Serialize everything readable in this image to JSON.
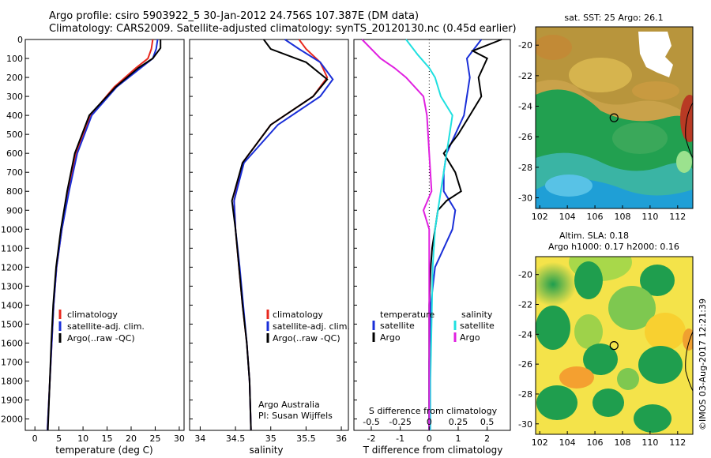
{
  "header": {
    "line1": "Argo profile: csiro 5903922_5 30-Jan-2012 24.756S 107.387E (DM data)",
    "line2": "Climatology: CARS2009. Satellite-adjusted climatology: synTS_20120130.nc (0.45d earlier)"
  },
  "panel1": {
    "xlabel": "temperature (deg C)",
    "xticks": [
      "0",
      "5",
      "10",
      "15",
      "20",
      "25",
      "30"
    ],
    "yticks": [
      "0",
      "100",
      "200",
      "300",
      "400",
      "500",
      "600",
      "700",
      "800",
      "900",
      "1000",
      "1100",
      "1200",
      "1300",
      "1400",
      "1500",
      "1600",
      "1700",
      "1800",
      "1900",
      "2000"
    ],
    "legend": [
      "climatology",
      "satellite-adj. clim.",
      "Argo(..raw -QC)"
    ]
  },
  "panel2": {
    "xlabel": "salinity",
    "xticks": [
      "34",
      "34.5",
      "35",
      "35.5",
      "36"
    ],
    "legend": [
      "climatology",
      "satellite-adj. clim.",
      "Argo(..raw -QC)"
    ],
    "note1": "Argo Australia",
    "note2": "PI: Susan Wijffels"
  },
  "panel3": {
    "top_label": "S difference from climatology",
    "top_ticks": [
      "-0.5",
      "-0.25",
      "0",
      "0.25",
      "0.5"
    ],
    "xlabel": "T difference from climatology",
    "xticks": [
      "-2",
      "-1",
      "0",
      "1",
      "2"
    ],
    "legend_t_head": "temperature",
    "legend_s_head": "salinity",
    "legend_t": [
      "satellite",
      "Argo"
    ],
    "legend_s": [
      "satellite",
      "Argo"
    ]
  },
  "map1": {
    "title": "sat. SST: 25 Argo: 26.1",
    "yticks": [
      "-20",
      "-22",
      "-24",
      "-26",
      "-28",
      "-30"
    ],
    "xticks": [
      "102",
      "104",
      "106",
      "108",
      "110",
      "112"
    ]
  },
  "map2": {
    "title1": "Altim. SLA: 0.18",
    "title2": "Argo h1000: 0.17 h2000: 0.16",
    "yticks": [
      "-20",
      "-22",
      "-24",
      "-26",
      "-28",
      "-30"
    ],
    "xticks": [
      "102",
      "104",
      "106",
      "108",
      "110",
      "112"
    ]
  },
  "stamp": "©IMOS 03-Aug-2017 12:21:39",
  "colors": {
    "climatology": "#e8281e",
    "satellite": "#1a2fd8",
    "argo": "#000000",
    "sal_sat": "#20e0e0",
    "sal_argo": "#e020e0"
  },
  "chart_data": [
    {
      "type": "line",
      "xlabel": "temperature (deg C)",
      "ylabel": "",
      "xlim": [
        -2,
        31
      ],
      "ylim": [
        2060,
        0
      ],
      "series": [
        {
          "name": "climatology",
          "x": [
            24.5,
            24.2,
            23.5,
            21.0,
            16.5,
            11.5,
            8.6,
            7.0,
            5.6,
            4.5,
            3.9,
            3.5,
            2.6
          ],
          "y": [
            0,
            50,
            100,
            150,
            250,
            400,
            600,
            800,
            1000,
            1200,
            1400,
            1600,
            2060
          ]
        },
        {
          "name": "satellite-adj. clim.",
          "x": [
            25.5,
            25.2,
            24.5,
            22.0,
            17.0,
            11.8,
            8.8,
            7.1,
            5.6,
            4.5,
            3.9,
            3.5,
            2.6
          ],
          "y": [
            0,
            50,
            100,
            150,
            250,
            400,
            600,
            800,
            1000,
            1200,
            1400,
            1600,
            2060
          ]
        },
        {
          "name": "Argo(..raw -QC)",
          "x": [
            26.1,
            26.1,
            24.5,
            21.5,
            16.8,
            11.3,
            8.3,
            6.7,
            5.4,
            4.4,
            3.8,
            3.4,
            2.7
          ],
          "y": [
            0,
            45,
            100,
            150,
            250,
            400,
            600,
            800,
            1000,
            1200,
            1400,
            1600,
            2060
          ]
        }
      ]
    },
    {
      "type": "line",
      "xlabel": "salinity",
      "ylabel": "",
      "xlim": [
        33.85,
        36.1
      ],
      "ylim": [
        2060,
        0
      ],
      "series": [
        {
          "name": "climatology",
          "x": [
            35.4,
            35.5,
            35.7,
            35.8,
            35.6,
            35.0,
            34.6,
            34.48,
            34.5,
            34.55,
            34.6,
            34.66,
            34.7,
            34.72
          ],
          "y": [
            0,
            50,
            120,
            200,
            300,
            450,
            650,
            850,
            1000,
            1200,
            1400,
            1600,
            1800,
            2060
          ]
        },
        {
          "name": "satellite-adj. clim.",
          "x": [
            35.2,
            35.4,
            35.7,
            35.88,
            35.7,
            35.1,
            34.62,
            34.48,
            34.5,
            34.56,
            34.61,
            34.66,
            34.7,
            34.72
          ],
          "y": [
            0,
            50,
            120,
            210,
            300,
            450,
            650,
            850,
            1000,
            1200,
            1400,
            1600,
            1800,
            2060
          ]
        },
        {
          "name": "Argo(..raw -QC)",
          "x": [
            34.9,
            35.0,
            35.5,
            35.8,
            35.6,
            35.0,
            34.6,
            34.45,
            34.5,
            34.55,
            34.6,
            34.66,
            34.7,
            34.72
          ],
          "y": [
            0,
            50,
            120,
            210,
            300,
            450,
            650,
            850,
            1000,
            1200,
            1400,
            1600,
            1800,
            2060
          ]
        }
      ]
    },
    {
      "type": "line",
      "xlabel": "T difference from climatology",
      "top_label": "S difference from climatology",
      "xlim": [
        -2.6,
        2.8
      ],
      "top_xlim": [
        -0.65,
        0.7
      ],
      "ylim": [
        2060,
        0
      ],
      "series": [
        {
          "name": "satellite",
          "quantity": "temperature",
          "x": [
            1.8,
            1.5,
            1.3,
            1.4,
            1.3,
            1.2,
            0.9,
            0.6,
            0.5,
            0.5,
            0.7,
            0.9,
            0.8,
            0.5,
            0.2,
            0.05,
            0,
            0
          ],
          "y": [
            0,
            60,
            100,
            200,
            300,
            400,
            500,
            600,
            700,
            800,
            850,
            900,
            1000,
            1100,
            1200,
            1400,
            1700,
            2060
          ]
        },
        {
          "name": "Argo",
          "quantity": "temperature",
          "x": [
            2.5,
            1.5,
            2.0,
            1.7,
            1.8,
            1.4,
            1.0,
            0.5,
            0.9,
            1.1,
            0.6,
            0.3,
            0.2,
            0.1,
            0.05,
            0,
            0,
            0
          ],
          "y": [
            0,
            60,
            100,
            200,
            300,
            400,
            500,
            600,
            700,
            800,
            850,
            900,
            1000,
            1100,
            1200,
            1400,
            1700,
            2060
          ]
        },
        {
          "name": "satellite",
          "quantity": "salinity",
          "x": [
            -0.2,
            -0.1,
            0.0,
            0.05,
            0.1,
            0.2,
            0.15,
            0.1,
            0.05,
            0.03,
            0.02,
            0.01,
            0.01
          ],
          "y": [
            0,
            80,
            150,
            200,
            300,
            400,
            600,
            800,
            1000,
            1200,
            1500,
            1800,
            2060
          ]
        },
        {
          "name": "Argo",
          "quantity": "salinity",
          "x": [
            -0.58,
            -0.42,
            -0.3,
            -0.2,
            -0.05,
            -0.02,
            0.0,
            0.02,
            -0.05,
            0.0,
            0.0,
            0.0,
            0.0
          ],
          "y": [
            0,
            100,
            150,
            200,
            300,
            400,
            600,
            800,
            900,
            1000,
            1200,
            1500,
            2060
          ]
        }
      ]
    },
    {
      "type": "heatmap",
      "title": "sat. SST: 25 Argo: 26.1",
      "xlim": [
        101.7,
        113.1
      ],
      "ylim": [
        -30.7,
        -18.8
      ],
      "marker": {
        "lon": 107.387,
        "lat": -24.756
      }
    },
    {
      "type": "heatmap",
      "title": "Altim. SLA: 0.18 / Argo h1000: 0.17 h2000: 0.16",
      "xlim": [
        101.7,
        113.1
      ],
      "ylim": [
        -30.7,
        -18.8
      ],
      "marker": {
        "lon": 107.387,
        "lat": -24.756
      }
    }
  ]
}
